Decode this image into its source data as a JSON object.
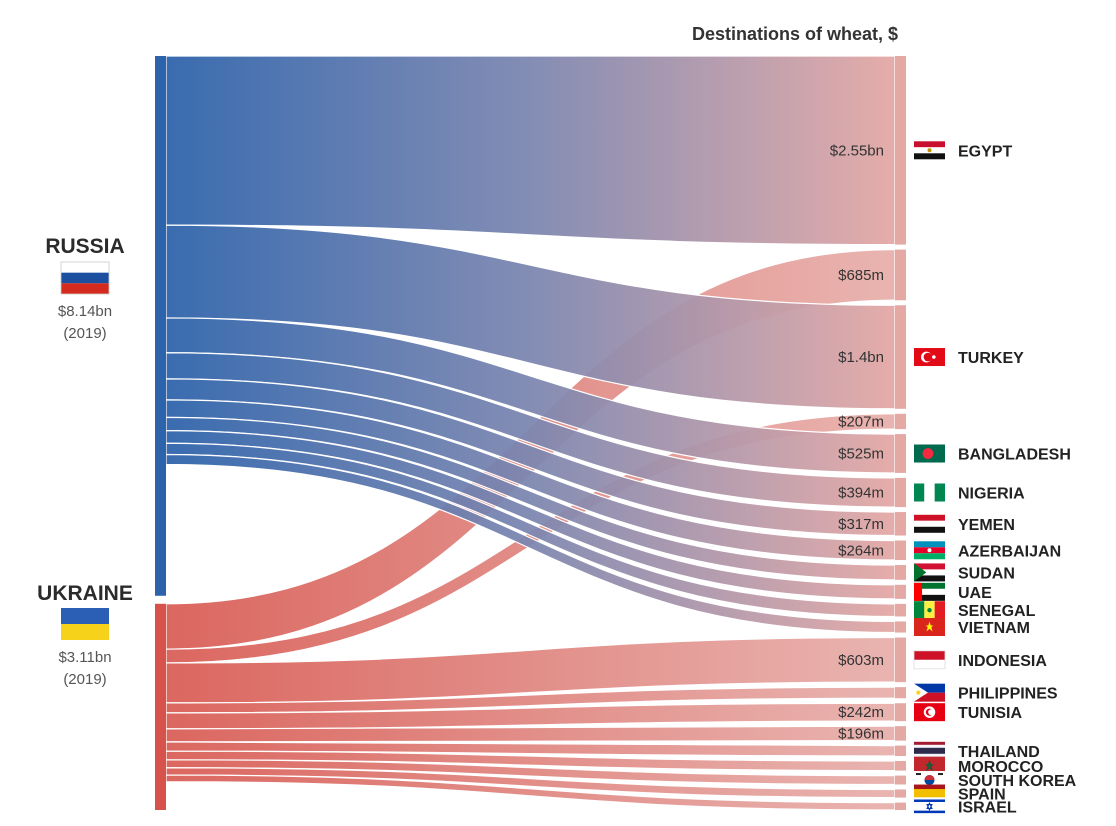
{
  "chart_data": {
    "type": "sankey",
    "title": "Destinations of wheat, $",
    "sources": [
      {
        "name": "RUSSIA",
        "total": "$8.14bn",
        "year": "(2019)",
        "value": 8.14,
        "color": "#2c63aa",
        "flag": "russia-flag"
      },
      {
        "name": "UKRAINE",
        "total": "$3.11bn",
        "year": "(2019)",
        "value": 3.11,
        "color": "#d6524a",
        "flag": "ukraine-flag"
      }
    ],
    "destinations": [
      {
        "name": "EGYPT",
        "flag": "egypt-flag",
        "label": "$2.55bn",
        "russia": 2.55,
        "ukraine": 0
      },
      {
        "name": "",
        "flag": "",
        "label": "$685m",
        "russia": 0,
        "ukraine": 0.685
      },
      {
        "name": "TURKEY",
        "flag": "turkey-flag",
        "label": "$1.4bn",
        "russia": 1.4,
        "ukraine": 0
      },
      {
        "name": "",
        "flag": "",
        "label": "$207m",
        "russia": 0,
        "ukraine": 0.207
      },
      {
        "name": "BANGLADESH",
        "flag": "bangladesh-flag",
        "label": "$525m",
        "russia": 0.525,
        "ukraine": 0
      },
      {
        "name": "NIGERIA",
        "flag": "nigeria-flag",
        "label": "$394m",
        "russia": 0.394,
        "ukraine": 0
      },
      {
        "name": "YEMEN",
        "flag": "yemen-flag",
        "label": "$317m",
        "russia": 0.317,
        "ukraine": 0
      },
      {
        "name": "AZERBAIJAN",
        "flag": "azerbaijan-flag",
        "label": "$264m",
        "russia": 0.264,
        "ukraine": 0
      },
      {
        "name": "SUDAN",
        "flag": "sudan-flag",
        "label": "",
        "russia": 0.2,
        "ukraine": 0
      },
      {
        "name": "UAE",
        "flag": "uae-flag",
        "label": "",
        "russia": 0.19,
        "ukraine": 0
      },
      {
        "name": "SENEGAL",
        "flag": "senegal-flag",
        "label": "",
        "russia": 0.17,
        "ukraine": 0
      },
      {
        "name": "VIETNAM",
        "flag": "vietnam-flag",
        "label": "",
        "russia": 0.15,
        "ukraine": 0
      },
      {
        "name": "INDONESIA",
        "flag": "indonesia-flag",
        "label": "$603m",
        "russia": 0,
        "ukraine": 0.603
      },
      {
        "name": "PHILIPPINES",
        "flag": "philippines-flag",
        "label": "",
        "russia": 0,
        "ukraine": 0.15
      },
      {
        "name": "TUNISIA",
        "flag": "tunisia-flag",
        "label": "$242m",
        "russia": 0,
        "ukraine": 0.242
      },
      {
        "name": "",
        "flag": "",
        "label": "$196m",
        "russia": 0,
        "ukraine": 0.196
      },
      {
        "name": "THAILAND",
        "flag": "thailand-flag",
        "label": "",
        "russia": 0,
        "ukraine": 0.14
      },
      {
        "name": "MOROCCO",
        "flag": "morocco-flag",
        "label": "",
        "russia": 0,
        "ukraine": 0.13
      },
      {
        "name": "SOUTH KOREA",
        "flag": "south-korea-flag",
        "label": "",
        "russia": 0,
        "ukraine": 0.12
      },
      {
        "name": "SPAIN",
        "flag": "spain-flag",
        "label": "",
        "russia": 0,
        "ukraine": 0.11
      },
      {
        "name": "ISRAEL",
        "flag": "israel-flag",
        "label": "",
        "russia": 0,
        "ukraine": 0.1
      }
    ],
    "colors": {
      "russia": "#2c63aa",
      "ukraine": "#d6524a",
      "destination": "#e4a8a5"
    }
  }
}
